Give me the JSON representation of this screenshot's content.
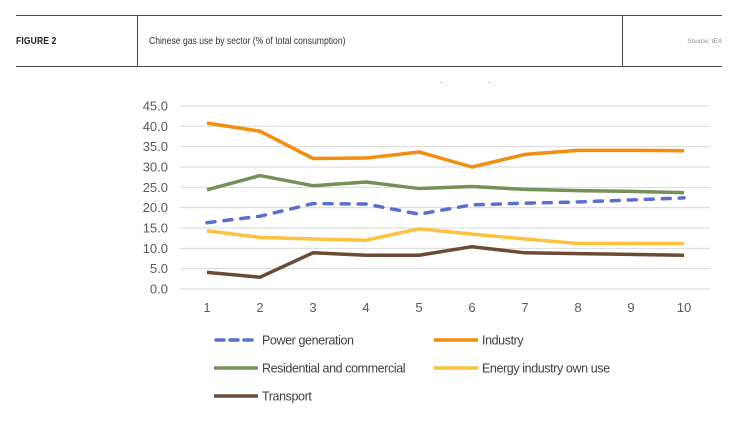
{
  "header": {
    "figure_label": "FIGURE 2",
    "title": "Chinese gas use by sector (% of total consumption)",
    "source": "Source: IEA"
  },
  "chart_data": {
    "type": "line",
    "title": "",
    "xlabel": "",
    "ylabel": "",
    "x": [
      1,
      2,
      3,
      4,
      5,
      6,
      7,
      8,
      9,
      10
    ],
    "x_tick_labels": [
      "1",
      "2",
      "3",
      "4",
      "5",
      "6",
      "7",
      "8",
      "9",
      "10"
    ],
    "ylim": [
      0,
      45
    ],
    "y_ticks": [
      0,
      5,
      10,
      15,
      20,
      25,
      30,
      35,
      40,
      45
    ],
    "y_tick_labels": [
      "0.0",
      "5.0",
      "10.0",
      "15.0",
      "20.0",
      "25.0",
      "30.0",
      "35.0",
      "40.0",
      "45.0"
    ],
    "grid": "horizontal",
    "legend_position": "bottom",
    "series": [
      {
        "name": "Power generation",
        "color": "#5B6FD0",
        "dash": true,
        "values": [
          16.3,
          17.9,
          21.0,
          20.9,
          18.4,
          20.7,
          21.1,
          21.4,
          21.9,
          22.4
        ]
      },
      {
        "name": "Industry",
        "color": "#F28E0C",
        "dash": false,
        "values": [
          40.8,
          38.8,
          32.1,
          32.2,
          33.7,
          30.0,
          33.1,
          34.1,
          34.1,
          34.0
        ]
      },
      {
        "name": "Residential and commercial",
        "color": "#72925A",
        "dash": false,
        "values": [
          24.4,
          27.9,
          25.4,
          26.3,
          24.7,
          25.2,
          24.5,
          24.2,
          24.0,
          23.7
        ]
      },
      {
        "name": "Energy industry own use",
        "color": "#FCC240",
        "dash": false,
        "values": [
          14.3,
          12.7,
          12.3,
          12.0,
          14.8,
          13.5,
          12.3,
          11.2,
          11.2,
          11.2
        ]
      },
      {
        "name": "Transport",
        "color": "#6B4A36",
        "dash": false,
        "values": [
          4.1,
          2.9,
          8.9,
          8.3,
          8.3,
          10.4,
          8.9,
          8.7,
          8.5,
          8.3
        ]
      }
    ]
  }
}
